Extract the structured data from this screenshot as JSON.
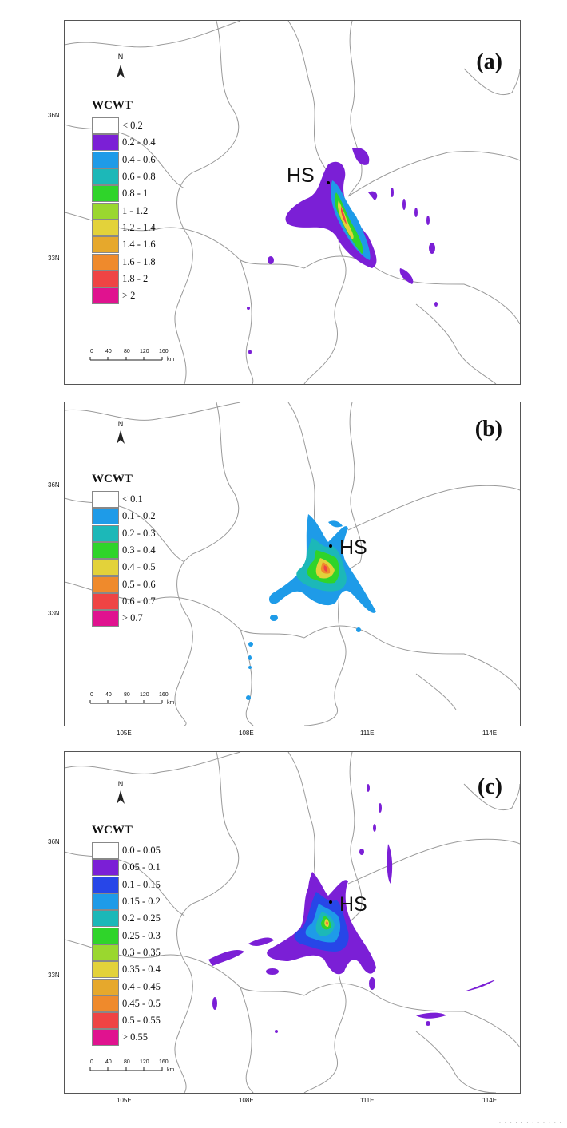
{
  "panels": [
    {
      "label": "(a)",
      "hs": "HS",
      "legend_title": "WCWT",
      "legend": [
        {
          "text": "< 0.2",
          "color": "#ffffff"
        },
        {
          "text": "0.2 - 0.4",
          "color": "#7b1fd6"
        },
        {
          "text": "0.4 - 0.6",
          "color": "#1e9be8"
        },
        {
          "text": "0.6 - 0.8",
          "color": "#1cb8b8"
        },
        {
          "text": "0.8 - 1",
          "color": "#2fd42a"
        },
        {
          "text": "1 - 1.2",
          "color": "#9ad72f"
        },
        {
          "text": "1.2 - 1.4",
          "color": "#e3d23a"
        },
        {
          "text": "1.4 - 1.6",
          "color": "#e6a82c"
        },
        {
          "text": "1.6 - 1.8",
          "color": "#ef8a2c"
        },
        {
          "text": "1.8 - 2",
          "color": "#ef4444"
        },
        {
          "text": "> 2",
          "color": "#e0128f"
        }
      ]
    },
    {
      "label": "(b)",
      "hs": "HS",
      "legend_title": "WCWT",
      "legend": [
        {
          "text": "< 0.1",
          "color": "#ffffff"
        },
        {
          "text": "0.1 - 0.2",
          "color": "#1e9be8"
        },
        {
          "text": "0.2 - 0.3",
          "color": "#1cb8b8"
        },
        {
          "text": "0.3 - 0.4",
          "color": "#2fd42a"
        },
        {
          "text": "0.4 - 0.5",
          "color": "#e3d23a"
        },
        {
          "text": "0.5 - 0.6",
          "color": "#ef8a2c"
        },
        {
          "text": "0.6 - 0.7",
          "color": "#ef4444"
        },
        {
          "text": "> 0.7",
          "color": "#e0128f"
        }
      ]
    },
    {
      "label": "(c)",
      "hs": "HS",
      "legend_title": "WCWT",
      "legend": [
        {
          "text": "0.0 - 0.05",
          "color": "#ffffff"
        },
        {
          "text": "0.05 - 0.1",
          "color": "#7b1fd6"
        },
        {
          "text": "0.1 - 0.15",
          "color": "#2746e8"
        },
        {
          "text": "0.15 - 0.2",
          "color": "#1e9be8"
        },
        {
          "text": "0.2 - 0.25",
          "color": "#1cb8b8"
        },
        {
          "text": "0.25 - 0.3",
          "color": "#2fd42a"
        },
        {
          "text": "0.3 - 0.35",
          "color": "#9ad72f"
        },
        {
          "text": "0.35 - 0.4",
          "color": "#e3d23a"
        },
        {
          "text": "0.4 - 0.45",
          "color": "#e6a82c"
        },
        {
          "text": "0.45 - 0.5",
          "color": "#ef8a2c"
        },
        {
          "text": "0.5 - 0.55",
          "color": "#ef4444"
        },
        {
          "text": "> 0.55",
          "color": "#e0128f"
        }
      ]
    }
  ],
  "axis": {
    "lat_labels": [
      "36N",
      "33N"
    ],
    "lon_labels": [
      "105E",
      "108E",
      "111E",
      "114E"
    ]
  },
  "scale": {
    "ticks": [
      "0",
      "40",
      "80",
      "120",
      "160"
    ],
    "unit": "km"
  },
  "north": "N",
  "footer": "· · · · · · · · · · · ·"
}
